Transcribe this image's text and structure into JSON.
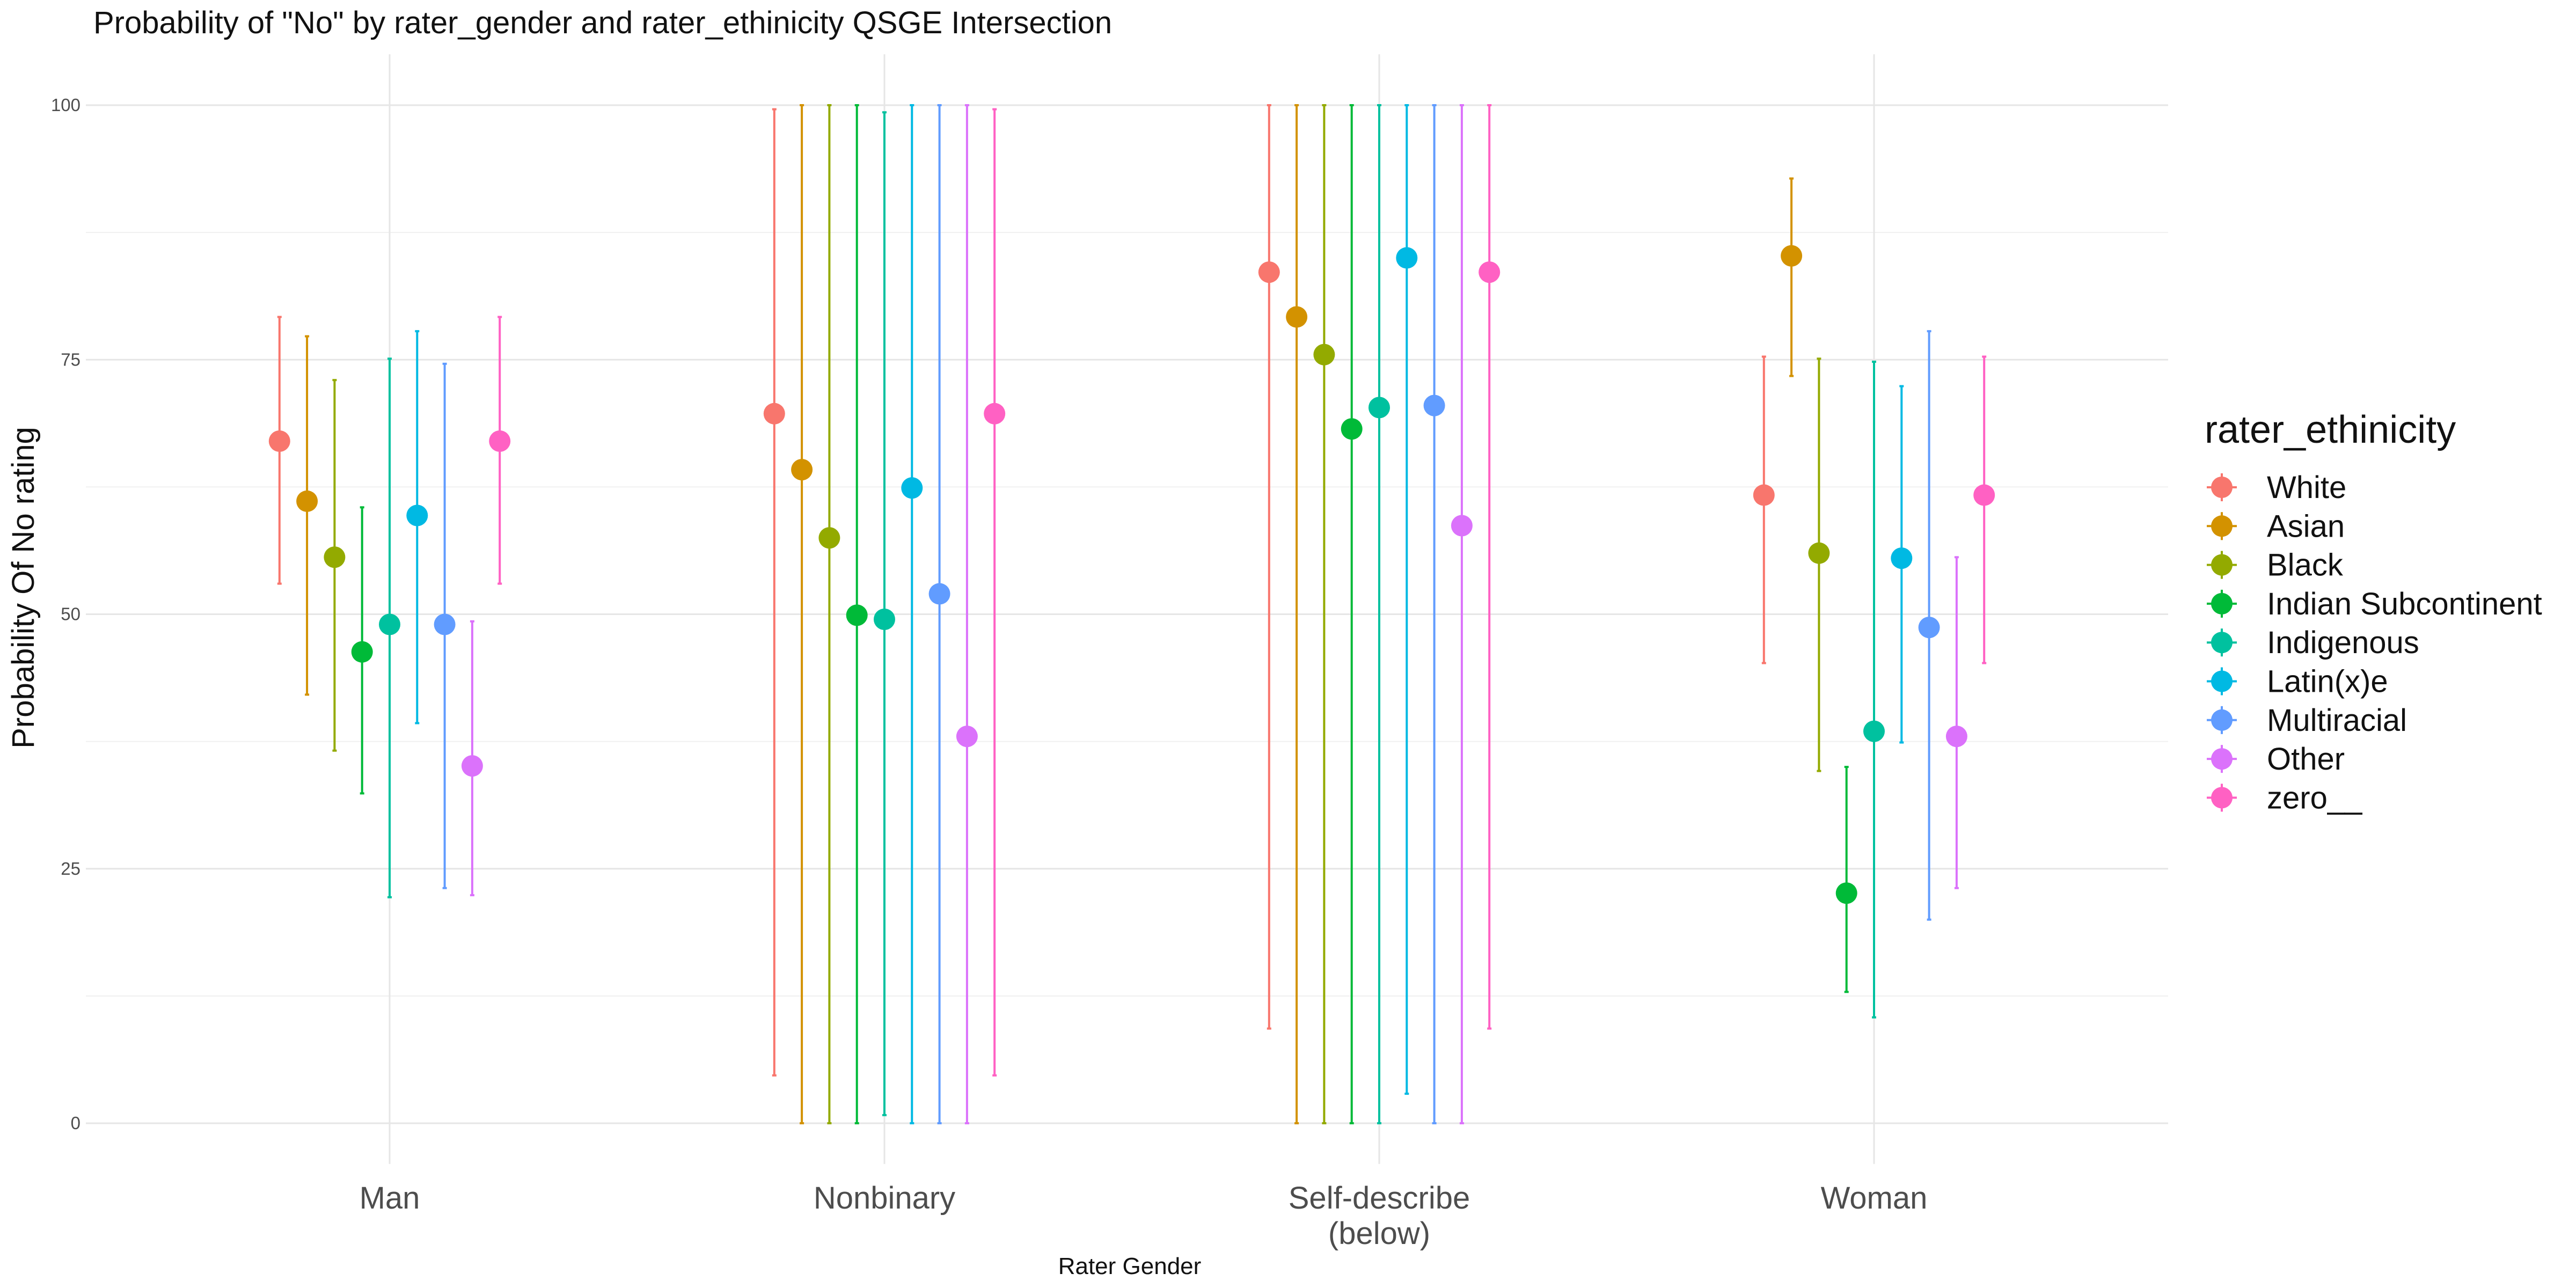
{
  "chart_data": {
    "type": "scatter",
    "subtype": "point-with-errorbars",
    "title": "Probability of \"No\" by rater_gender and  rater_ethinicity  QSGE Intersection",
    "xlabel": "Rater Gender",
    "ylabel": "Probability Of No rating",
    "categories": [
      "Man",
      "Nonbinary",
      "Self-describe\n(below)",
      "Woman"
    ],
    "yticks": [
      0,
      25,
      50,
      75,
      100
    ],
    "ylim": [
      -4,
      105
    ],
    "grid": true,
    "legend": {
      "title": "rater_ethinicity",
      "placement": "right"
    },
    "series": [
      {
        "name": "White",
        "color": "#F8766D",
        "values": [
          67,
          69.7,
          83.6,
          61.7
        ],
        "lower": [
          53,
          4.7,
          9.3,
          45.2
        ],
        "upper": [
          79.2,
          99.6,
          100,
          75.3
        ]
      },
      {
        "name": "Asian",
        "color": "#D39200",
        "values": [
          61.1,
          64.2,
          79.2,
          85.2
        ],
        "lower": [
          42.1,
          0,
          0,
          73.4
        ],
        "upper": [
          77.3,
          100,
          100,
          92.8
        ]
      },
      {
        "name": "Black",
        "color": "#93AA00",
        "values": [
          55.6,
          57.5,
          75.5,
          56
        ],
        "lower": [
          36.6,
          0,
          0,
          34.6
        ],
        "upper": [
          73,
          100,
          100,
          75.1
        ]
      },
      {
        "name": "Indian Subcontinent",
        "color": "#00BA38",
        "values": [
          46.3,
          49.9,
          68.2,
          22.6
        ],
        "lower": [
          32.4,
          0,
          0,
          12.9
        ],
        "upper": [
          60.5,
          100,
          100,
          35
        ]
      },
      {
        "name": "Indigenous",
        "color": "#00C19F",
        "values": [
          49,
          49.5,
          70.3,
          38.5
        ],
        "lower": [
          22.2,
          0.8,
          0,
          10.4
        ],
        "upper": [
          75.1,
          99.3,
          100,
          74.8
        ]
      },
      {
        "name": "Latin(x)e",
        "color": "#00B9E3",
        "values": [
          59.7,
          62.4,
          85,
          55.5
        ],
        "lower": [
          39.3,
          0,
          2.9,
          37.4
        ],
        "upper": [
          77.8,
          100,
          100,
          72.4
        ]
      },
      {
        "name": "Multiracial",
        "color": "#619CFF",
        "values": [
          49,
          52,
          70.5,
          48.7
        ],
        "lower": [
          23.1,
          0,
          0,
          20
        ],
        "upper": [
          74.6,
          100,
          100,
          77.8
        ]
      },
      {
        "name": "Other",
        "color": "#DB72FB",
        "values": [
          35.1,
          38,
          58.7,
          38
        ],
        "lower": [
          22.4,
          0,
          0,
          23.1
        ],
        "upper": [
          49.3,
          100,
          100,
          55.6
        ]
      },
      {
        "name": "zero__",
        "color": "#FF61C3",
        "values": [
          67,
          69.7,
          83.6,
          61.7
        ],
        "lower": [
          53,
          4.7,
          9.3,
          45.2
        ],
        "upper": [
          79.2,
          99.6,
          100,
          75.3
        ]
      }
    ]
  }
}
